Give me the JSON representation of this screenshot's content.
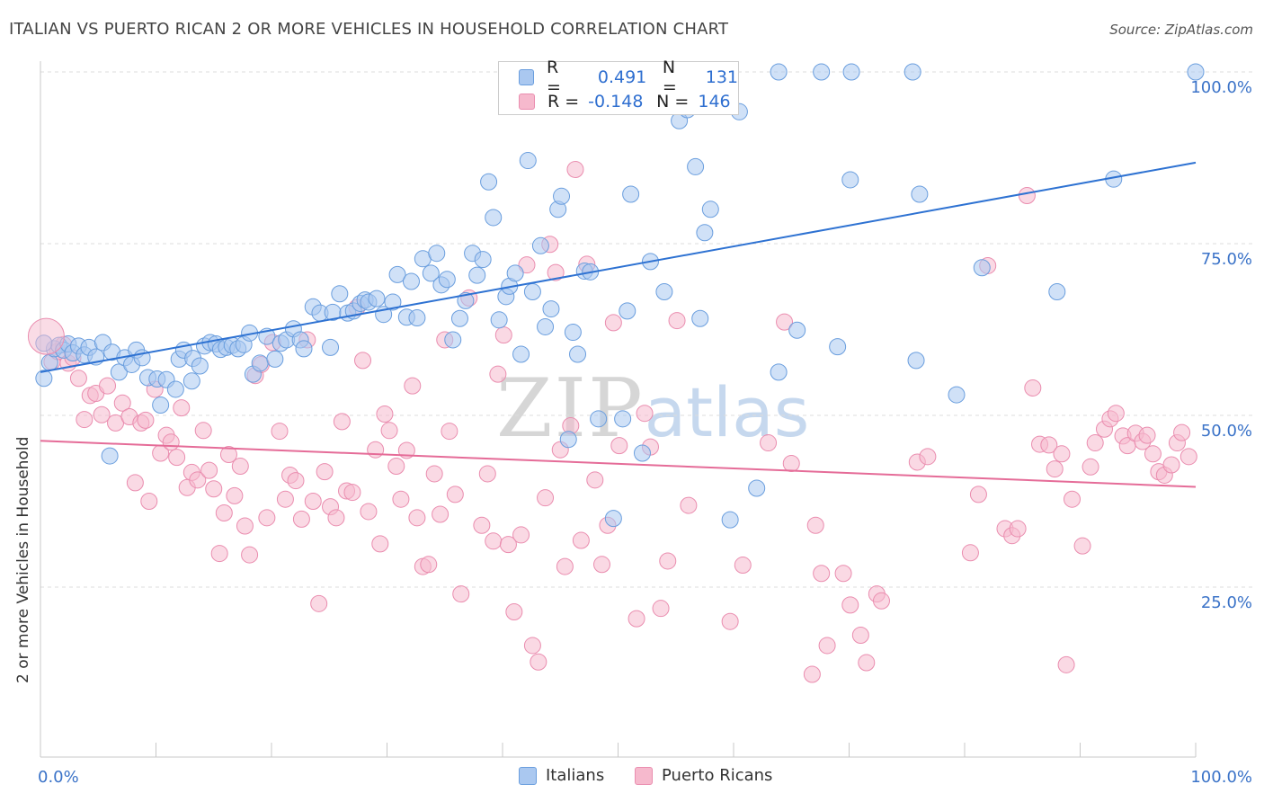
{
  "title": "ITALIAN VS PUERTO RICAN 2 OR MORE VEHICLES IN HOUSEHOLD CORRELATION CHART",
  "source": "Source: ZipAtlas.com",
  "watermark": {
    "zip": "ZIP",
    "atlas": "atlas"
  },
  "colors": {
    "blue_fill": "#aac8f0",
    "blue_stroke": "#6a9ede",
    "blue_line": "#2e72d2",
    "pink_fill": "#f6b9cd",
    "pink_stroke": "#ea8daf",
    "pink_line": "#e56c98",
    "axis_text": "#3b73c8"
  },
  "stats_legend": {
    "rows": [
      {
        "r_label": "R =",
        "r_value": "0.491",
        "n_label": "N =",
        "n_value": "131"
      },
      {
        "r_label": "R =",
        "r_value": "-0.148",
        "n_label": "N =",
        "n_value": "146"
      }
    ]
  },
  "chart_data": {
    "type": "scatter",
    "title": "ITALIAN VS PUERTO RICAN 2 OR MORE VEHICLES IN HOUSEHOLD CORRELATION CHART",
    "xlabel": "",
    "ylabel": "2 or more Vehicles in Household",
    "xlim": [
      0,
      100
    ],
    "ylim": [
      0,
      102
    ],
    "x_tick_labels": [
      "0.0%",
      "100.0%"
    ],
    "y_tick_labels": [
      "25.0%",
      "50.0%",
      "75.0%",
      "100.0%"
    ],
    "y_ticks": [
      25,
      50,
      75,
      100
    ],
    "grid": true,
    "legend_position": "bottom",
    "series": [
      {
        "name": "Italians",
        "trend": [
          [
            0,
            56.3
          ],
          [
            100,
            86.8
          ]
        ],
        "points": [
          [
            0.3,
            55.4
          ],
          [
            0.8,
            57.7
          ],
          [
            1.2,
            59.7
          ],
          [
            1.6,
            60.2
          ],
          [
            2,
            59.5
          ],
          [
            2.4,
            60.4
          ],
          [
            2.8,
            59.1
          ],
          [
            3.3,
            60.1
          ],
          [
            3.8,
            58.8
          ],
          [
            4.2,
            59.9
          ],
          [
            4.8,
            58.5
          ],
          [
            5.4,
            60.6
          ],
          [
            6.2,
            59.2
          ],
          [
            6.8,
            56.3
          ],
          [
            7.3,
            58.4
          ],
          [
            7.9,
            57.4
          ],
          [
            8.3,
            59.5
          ],
          [
            8.8,
            58.4
          ],
          [
            9.3,
            55.5
          ],
          [
            10.1,
            55.3
          ],
          [
            10.4,
            51.5
          ],
          [
            10.9,
            55.2
          ],
          [
            11.7,
            53.8
          ],
          [
            12,
            58.2
          ],
          [
            12.4,
            59.5
          ],
          [
            13.1,
            55
          ],
          [
            13.2,
            58.3
          ],
          [
            13.8,
            57.2
          ],
          [
            14.2,
            60.1
          ],
          [
            14.7,
            60.6
          ],
          [
            15.2,
            60.4
          ],
          [
            15.6,
            59.6
          ],
          [
            16.1,
            59.9
          ],
          [
            16.6,
            60.2
          ],
          [
            17.1,
            59.7
          ],
          [
            17.6,
            60.3
          ],
          [
            18.1,
            62
          ],
          [
            18.4,
            56
          ],
          [
            19,
            57.6
          ],
          [
            19.6,
            61.5
          ],
          [
            20.3,
            58.2
          ],
          [
            20.8,
            60.5
          ],
          [
            21.3,
            61
          ],
          [
            21.9,
            62.6
          ],
          [
            22.5,
            61
          ],
          [
            22.8,
            59.7
          ],
          [
            23.6,
            65.8
          ],
          [
            24.2,
            64.9
          ],
          [
            25.1,
            59.9
          ],
          [
            25.3,
            65
          ],
          [
            25.9,
            67.7
          ],
          [
            26.6,
            64.9
          ],
          [
            27.1,
            65.2
          ],
          [
            27.7,
            66.3
          ],
          [
            28.1,
            66.8
          ],
          [
            28.4,
            66.5
          ],
          [
            29.1,
            67
          ],
          [
            29.7,
            64.7
          ],
          [
            30.5,
            66.5
          ],
          [
            30.9,
            70.5
          ],
          [
            31.7,
            64.3
          ],
          [
            32.1,
            69.5
          ],
          [
            32.6,
            64.2
          ],
          [
            33.1,
            72.8
          ],
          [
            33.8,
            70.7
          ],
          [
            34.3,
            73.6
          ],
          [
            34.7,
            69
          ],
          [
            35.2,
            69.8
          ],
          [
            35.7,
            61
          ],
          [
            36.3,
            64.1
          ],
          [
            36.8,
            66.7
          ],
          [
            37.4,
            73.6
          ],
          [
            37.8,
            70.4
          ],
          [
            38.3,
            72.7
          ],
          [
            38.8,
            84
          ],
          [
            39.2,
            78.8
          ],
          [
            39.7,
            63.9
          ],
          [
            40.3,
            67.3
          ],
          [
            40.6,
            68.8
          ],
          [
            41.1,
            70.7
          ],
          [
            41.6,
            58.9
          ],
          [
            42.2,
            87.1
          ],
          [
            42.6,
            68
          ],
          [
            43.3,
            74.7
          ],
          [
            43.7,
            62.9
          ],
          [
            44.2,
            65.5
          ],
          [
            44.8,
            80
          ],
          [
            45.1,
            81.9
          ],
          [
            45.7,
            46.5
          ],
          [
            46.1,
            62.1
          ],
          [
            46.5,
            58.9
          ],
          [
            47.1,
            71
          ],
          [
            47.6,
            70.9
          ],
          [
            48.3,
            49.5
          ],
          [
            48.9,
            100
          ],
          [
            49.6,
            35
          ],
          [
            50.4,
            49.5
          ],
          [
            50.8,
            65.2
          ],
          [
            51.1,
            82.2
          ],
          [
            52.1,
            44.5
          ],
          [
            52.8,
            72.4
          ],
          [
            54,
            68
          ],
          [
            54.8,
            100
          ],
          [
            55.3,
            92.9
          ],
          [
            56,
            94.5
          ],
          [
            56.7,
            86.2
          ],
          [
            57.1,
            64.1
          ],
          [
            57.5,
            76.6
          ],
          [
            58,
            80
          ],
          [
            58.9,
            100
          ],
          [
            59.7,
            34.8
          ],
          [
            60.5,
            94.2
          ],
          [
            62,
            39.4
          ],
          [
            63.9,
            100
          ],
          [
            63.9,
            56.3
          ],
          [
            65.5,
            62.4
          ],
          [
            67.6,
            100
          ],
          [
            69,
            60
          ],
          [
            70.1,
            84.3
          ],
          [
            70.2,
            100
          ],
          [
            75.5,
            100
          ],
          [
            75.8,
            58
          ],
          [
            76.1,
            82.2
          ],
          [
            79.3,
            53
          ],
          [
            81.5,
            71.5
          ],
          [
            88,
            68
          ],
          [
            92.9,
            84.4
          ],
          [
            100,
            100
          ],
          [
            0.3,
            60.5
          ],
          [
            6,
            44.1
          ]
        ]
      },
      {
        "name": "Puerto Ricans",
        "trend": [
          [
            0,
            46.3
          ],
          [
            100,
            39.6
          ]
        ],
        "points": [
          [
            1,
            57.8
          ],
          [
            1.5,
            59.3
          ],
          [
            2,
            60.3
          ],
          [
            2.4,
            57.6
          ],
          [
            2.8,
            58.4
          ],
          [
            3.3,
            55.4
          ],
          [
            3.8,
            49.4
          ],
          [
            4.3,
            52.9
          ],
          [
            4.8,
            53.2
          ],
          [
            5.3,
            50.1
          ],
          [
            5.8,
            54.3
          ],
          [
            6.5,
            48.9
          ],
          [
            7.1,
            51.8
          ],
          [
            7.7,
            49.8
          ],
          [
            8.2,
            40.2
          ],
          [
            8.7,
            48.9
          ],
          [
            9.1,
            49.3
          ],
          [
            9.4,
            37.5
          ],
          [
            9.9,
            53.8
          ],
          [
            10.4,
            44.5
          ],
          [
            10.9,
            47.1
          ],
          [
            11.3,
            46.1
          ],
          [
            11.8,
            43.9
          ],
          [
            12.2,
            51.1
          ],
          [
            12.7,
            39.5
          ],
          [
            13.1,
            41.7
          ],
          [
            13.6,
            40.6
          ],
          [
            14.1,
            47.8
          ],
          [
            14.6,
            42
          ],
          [
            15,
            39.3
          ],
          [
            15.5,
            29.9
          ],
          [
            15.9,
            35.8
          ],
          [
            16.3,
            44.3
          ],
          [
            16.8,
            38.3
          ],
          [
            17.3,
            42.6
          ],
          [
            17.7,
            33.9
          ],
          [
            18.1,
            29.7
          ],
          [
            18.6,
            55.8
          ],
          [
            19.1,
            57.4
          ],
          [
            19.6,
            35.1
          ],
          [
            20.1,
            60.6
          ],
          [
            20.7,
            47.7
          ],
          [
            21.2,
            37.8
          ],
          [
            21.6,
            41.3
          ],
          [
            22.1,
            40.5
          ],
          [
            22.6,
            34.9
          ],
          [
            23.1,
            61
          ],
          [
            23.6,
            37.5
          ],
          [
            24.1,
            22.6
          ],
          [
            24.6,
            41.8
          ],
          [
            25.1,
            36.7
          ],
          [
            25.6,
            35.1
          ],
          [
            26.1,
            49.1
          ],
          [
            26.5,
            39
          ],
          [
            27,
            38.8
          ],
          [
            27.4,
            65.7
          ],
          [
            27.9,
            58
          ],
          [
            28.4,
            36
          ],
          [
            29,
            45
          ],
          [
            29.4,
            31.3
          ],
          [
            29.8,
            50.2
          ],
          [
            30.2,
            47.8
          ],
          [
            30.8,
            42.6
          ],
          [
            31.2,
            37.8
          ],
          [
            31.7,
            44.9
          ],
          [
            32.2,
            54.3
          ],
          [
            32.6,
            35.1
          ],
          [
            33.1,
            28
          ],
          [
            33.6,
            28.3
          ],
          [
            34.1,
            41.5
          ],
          [
            34.6,
            35.6
          ],
          [
            35,
            61
          ],
          [
            35.4,
            47.7
          ],
          [
            35.9,
            38.5
          ],
          [
            36.4,
            24
          ],
          [
            37.1,
            67.1
          ],
          [
            38.2,
            34
          ],
          [
            38.7,
            41.5
          ],
          [
            39.2,
            31.7
          ],
          [
            39.6,
            56
          ],
          [
            40.1,
            61.7
          ],
          [
            40.5,
            31.2
          ],
          [
            41,
            21.4
          ],
          [
            41.6,
            32.6
          ],
          [
            42.1,
            71.9
          ],
          [
            42.6,
            16.5
          ],
          [
            43.1,
            14.1
          ],
          [
            43.7,
            38
          ],
          [
            44.1,
            74.9
          ],
          [
            44.6,
            70.8
          ],
          [
            45,
            45
          ],
          [
            45.4,
            28
          ],
          [
            45.9,
            48.5
          ],
          [
            46.3,
            85.8
          ],
          [
            46.8,
            31.8
          ],
          [
            47.3,
            72
          ],
          [
            48,
            40.6
          ],
          [
            48.6,
            28.3
          ],
          [
            49.1,
            34
          ],
          [
            49.6,
            63.5
          ],
          [
            50.1,
            45.6
          ],
          [
            51.6,
            20.4
          ],
          [
            52.3,
            50.3
          ],
          [
            52.8,
            45.4
          ],
          [
            53.7,
            21.9
          ],
          [
            54.3,
            28.8
          ],
          [
            55.1,
            63.8
          ],
          [
            56.1,
            36.9
          ],
          [
            59.7,
            20
          ],
          [
            60.8,
            28.2
          ],
          [
            63,
            46
          ],
          [
            64.4,
            63.6
          ],
          [
            65,
            43
          ],
          [
            66.8,
            12.3
          ],
          [
            67.1,
            34
          ],
          [
            67.6,
            27
          ],
          [
            68.1,
            16.5
          ],
          [
            69.5,
            27
          ],
          [
            70.1,
            22.4
          ],
          [
            71,
            18
          ],
          [
            71.5,
            14
          ],
          [
            72.4,
            24
          ],
          [
            72.8,
            23
          ],
          [
            75.9,
            43.2
          ],
          [
            76.8,
            44
          ],
          [
            80.5,
            30
          ],
          [
            81.2,
            38.5
          ],
          [
            82,
            71.8
          ],
          [
            83.5,
            33.5
          ],
          [
            84.1,
            32.5
          ],
          [
            84.6,
            33.5
          ],
          [
            85.4,
            82
          ],
          [
            85.9,
            54
          ],
          [
            86.5,
            45.8
          ],
          [
            87.3,
            45.7
          ],
          [
            87.8,
            42.2
          ],
          [
            88.4,
            44.4
          ],
          [
            88.8,
            13.7
          ],
          [
            89.3,
            37.8
          ],
          [
            90.2,
            31
          ],
          [
            90.9,
            42.5
          ],
          [
            91.3,
            46
          ],
          [
            92.1,
            48
          ],
          [
            92.6,
            49.5
          ],
          [
            93.1,
            50.3
          ],
          [
            93.7,
            47
          ],
          [
            94.1,
            45.6
          ],
          [
            94.8,
            47.4
          ],
          [
            95.4,
            46.2
          ],
          [
            95.8,
            47.1
          ],
          [
            96.3,
            44.4
          ],
          [
            96.8,
            41.8
          ],
          [
            97.3,
            41.3
          ],
          [
            97.9,
            42.8
          ],
          [
            98.4,
            46
          ],
          [
            98.8,
            47.5
          ],
          [
            99.4,
            44
          ]
        ]
      }
    ]
  },
  "bottom_legend": [
    {
      "label": "Italians"
    },
    {
      "label": "Puerto Ricans"
    }
  ]
}
